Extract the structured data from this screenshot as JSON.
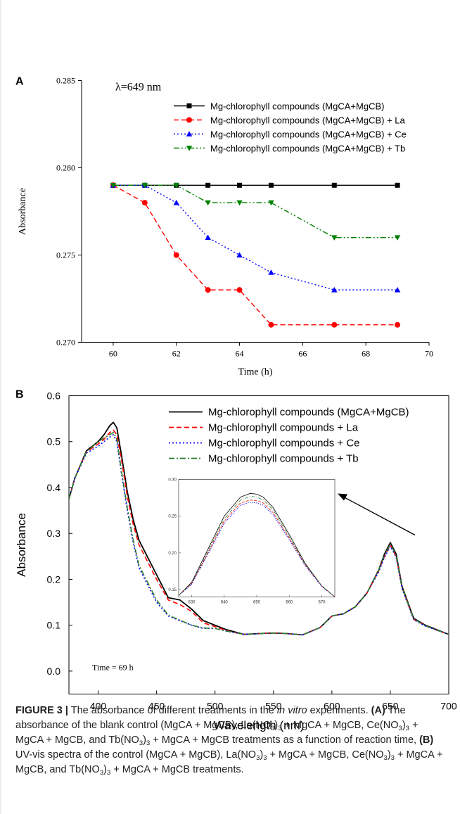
{
  "figure": {
    "panel_a_letter": "A",
    "panel_b_letter": "B"
  },
  "chart_data": [
    {
      "id": "A",
      "type": "line",
      "annotation": "λ=649 nm",
      "xlabel": "Time (h)",
      "ylabel": "Absorbance",
      "xlim": [
        59,
        70
      ],
      "ylim": [
        0.27,
        0.285
      ],
      "xticks": [
        60,
        62,
        64,
        66,
        68,
        70
      ],
      "xtick_labels": [
        "60",
        "62",
        "64",
        "66",
        "68",
        "70"
      ],
      "yticks": [
        0.27,
        0.275,
        0.28,
        0.285
      ],
      "ytick_labels": [
        "0.270",
        "0.275",
        "0.280",
        "0.285"
      ],
      "legend_position": "top-right",
      "x": [
        60,
        61,
        62,
        63,
        64,
        65,
        67,
        69
      ],
      "series": [
        {
          "name": "Mg-chlorophyll compounds (MgCA+MgCB)",
          "color": "#000000",
          "marker": "square",
          "dash": "solid",
          "values": [
            0.279,
            0.279,
            0.279,
            0.279,
            0.279,
            0.279,
            0.279,
            0.279
          ]
        },
        {
          "name": "Mg-chlorophyll compounds (MgCA+MgCB) + La",
          "color": "#ff0000",
          "marker": "circle",
          "dash": "dash",
          "values": [
            0.279,
            0.278,
            0.275,
            0.273,
            0.273,
            0.271,
            0.271,
            0.271
          ]
        },
        {
          "name": "Mg-chlorophyll compounds (MgCA+MgCB) + Ce",
          "color": "#0000ff",
          "marker": "triangle-up",
          "dash": "dot",
          "values": [
            0.279,
            0.279,
            0.278,
            0.276,
            0.275,
            0.274,
            0.273,
            0.273
          ]
        },
        {
          "name": "Mg-chlorophyll compounds (MgCA+MgCB) + Tb",
          "color": "#008000",
          "marker": "triangle-down",
          "dash": "dashdotdot",
          "values": [
            0.279,
            0.279,
            0.279,
            0.278,
            0.278,
            0.278,
            0.276,
            0.276
          ]
        }
      ]
    },
    {
      "id": "B",
      "type": "line",
      "annotation": "Time = 69 h",
      "xlabel": "Wavelength (nm)",
      "ylabel": "Absorbance",
      "xlim": [
        375,
        700
      ],
      "ylim": [
        -0.05,
        0.6
      ],
      "xticks": [
        400,
        450,
        500,
        550,
        600,
        650,
        700
      ],
      "xtick_labels": [
        "400",
        "450",
        "500",
        "550",
        "600",
        "650",
        "700"
      ],
      "yticks": [
        0.0,
        0.1,
        0.2,
        0.3,
        0.4,
        0.5,
        0.6
      ],
      "ytick_labels": [
        "0.0",
        "0.1",
        "0.2",
        "0.3",
        "0.4",
        "0.5",
        "0.6"
      ],
      "legend_position": "top-right",
      "x": [
        375,
        380,
        390,
        400,
        405,
        410,
        413,
        416,
        420,
        425,
        430,
        435,
        440,
        450,
        460,
        470,
        480,
        490,
        500,
        510,
        525,
        540,
        550,
        560,
        575,
        590,
        600,
        610,
        620,
        630,
        640,
        645,
        650,
        655,
        660,
        670,
        680,
        690,
        700
      ],
      "series": [
        {
          "name": "Mg-chlorophyll compounds (MgCA+MgCB)",
          "color": "#000000",
          "dash": "solid",
          "values": [
            0.375,
            0.42,
            0.48,
            0.5,
            0.515,
            0.535,
            0.542,
            0.53,
            0.47,
            0.39,
            0.33,
            0.285,
            0.26,
            0.21,
            0.16,
            0.155,
            0.135,
            0.11,
            0.1,
            0.09,
            0.08,
            0.082,
            0.083,
            0.082,
            0.079,
            0.095,
            0.12,
            0.125,
            0.14,
            0.17,
            0.22,
            0.255,
            0.28,
            0.255,
            0.185,
            0.115,
            0.1,
            0.09,
            0.08
          ]
        },
        {
          "name": "Mg-chlorophyll compounds + La",
          "color": "#ff0000",
          "dash": "dash",
          "values": [
            0.375,
            0.42,
            0.478,
            0.495,
            0.505,
            0.52,
            0.525,
            0.515,
            0.46,
            0.38,
            0.32,
            0.275,
            0.25,
            0.2,
            0.155,
            0.145,
            0.13,
            0.105,
            0.097,
            0.088,
            0.08,
            0.082,
            0.083,
            0.082,
            0.079,
            0.095,
            0.12,
            0.125,
            0.14,
            0.17,
            0.218,
            0.25,
            0.275,
            0.25,
            0.182,
            0.113,
            0.099,
            0.089,
            0.08
          ]
        },
        {
          "name": "Mg-chlorophyll compounds + Ce",
          "color": "#0000ff",
          "dash": "dot",
          "values": [
            0.375,
            0.42,
            0.475,
            0.49,
            0.5,
            0.51,
            0.515,
            0.5,
            0.43,
            0.35,
            0.28,
            0.225,
            0.2,
            0.15,
            0.12,
            0.11,
            0.1,
            0.093,
            0.093,
            0.087,
            0.08,
            0.082,
            0.083,
            0.082,
            0.079,
            0.095,
            0.12,
            0.125,
            0.14,
            0.17,
            0.216,
            0.248,
            0.272,
            0.248,
            0.18,
            0.112,
            0.098,
            0.089,
            0.08
          ]
        },
        {
          "name": "Mg-chlorophyll compounds + Tb",
          "color": "#2e7d32",
          "dash": "dashdot",
          "values": [
            0.375,
            0.42,
            0.478,
            0.5,
            0.508,
            0.515,
            0.52,
            0.505,
            0.435,
            0.355,
            0.285,
            0.23,
            0.205,
            0.155,
            0.122,
            0.111,
            0.1,
            0.094,
            0.093,
            0.087,
            0.08,
            0.082,
            0.083,
            0.082,
            0.079,
            0.095,
            0.12,
            0.125,
            0.14,
            0.17,
            0.22,
            0.252,
            0.277,
            0.252,
            0.183,
            0.114,
            0.099,
            0.089,
            0.08
          ]
        }
      ],
      "inset": {
        "xlim": [
          626,
          674
        ],
        "ylim": [
          0.14,
          0.3
        ],
        "xticks": [
          630,
          640,
          650,
          660,
          670
        ],
        "xtick_labels": [
          "630",
          "640",
          "650",
          "660",
          "670"
        ],
        "yticks": [
          0.15,
          0.2,
          0.25,
          0.3
        ],
        "ytick_labels": [
          "0.15",
          "0.20",
          "0.25",
          "0.30"
        ],
        "x": [
          626,
          630,
          635,
          640,
          645,
          648,
          650,
          652,
          655,
          660,
          665,
          670,
          674
        ],
        "series": [
          {
            "color": "#000000",
            "dash": "solid",
            "values": [
              0.142,
              0.16,
              0.205,
              0.25,
              0.276,
              0.281,
              0.28,
              0.276,
              0.262,
              0.225,
              0.185,
              0.155,
              0.14
            ]
          },
          {
            "color": "#ff0000",
            "dash": "dash",
            "values": [
              0.142,
              0.158,
              0.2,
              0.243,
              0.268,
              0.272,
              0.271,
              0.268,
              0.255,
              0.22,
              0.183,
              0.155,
              0.14
            ]
          },
          {
            "color": "#0000ff",
            "dash": "dot",
            "values": [
              0.142,
              0.157,
              0.198,
              0.24,
              0.265,
              0.269,
              0.268,
              0.265,
              0.252,
              0.218,
              0.182,
              0.154,
              0.14
            ]
          },
          {
            "color": "#2e7d32",
            "dash": "dashdot",
            "values": [
              0.142,
              0.159,
              0.202,
              0.246,
              0.272,
              0.277,
              0.276,
              0.272,
              0.259,
              0.222,
              0.184,
              0.155,
              0.14
            ]
          }
        ]
      }
    }
  ],
  "caption": {
    "figure_label": "FIGURE 3 |",
    "intro_before_italic": " The absorbance of different treatments in the ",
    "intro_italic": "in vitro",
    "intro_after_italic": " experiments.",
    "part_a_label": "(A)",
    "part_a_text_1": " The absorbance of the blank control (MgCA + MgCB), La(NO",
    "part_a_text_2": ")",
    "part_a_text_3": " + MgCA + MgCB, Ce(NO",
    "part_a_text_4": ")",
    "part_a_text_5": " + MgCA + MgCB, and Tb(NO",
    "part_a_text_6": ")",
    "part_a_text_7": " + MgCA + MgCB treatments as a function of reaction time, ",
    "part_b_label": "(B)",
    "part_b_text_1": " UV-vis spectra of the control (MgCA + MgCB), La(NO",
    "part_b_text_2": ")",
    "part_b_text_3": " + MgCA + MgCB, Ce(NO",
    "part_b_text_4": ")",
    "part_b_text_5": " + MgCA + MgCB, and Tb(NO",
    "part_b_text_6": ")",
    "part_b_text_7": " + MgCA + MgCB treatments.",
    "subscript_3": "3"
  }
}
